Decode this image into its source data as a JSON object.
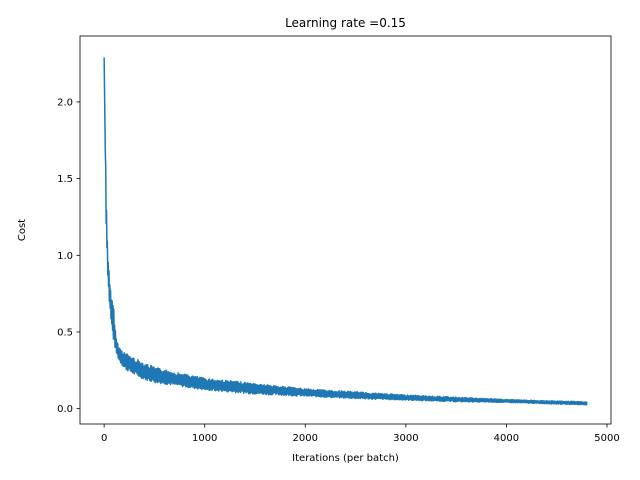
{
  "chart_data": {
    "type": "line",
    "title": "Learning rate =0.15",
    "xlabel": "Iterations (per batch)",
    "ylabel": "Cost",
    "xlim": [
      -240,
      5040
    ],
    "ylim": [
      -0.1,
      2.43
    ],
    "xticks": [
      0,
      1000,
      2000,
      3000,
      4000,
      5000
    ],
    "yticks": [
      0.0,
      0.5,
      1.0,
      1.5,
      2.0
    ],
    "xtick_labels": [
      "0",
      "1000",
      "2000",
      "3000",
      "4000",
      "5000"
    ],
    "ytick_labels": [
      "0.0",
      "0.5",
      "1.0",
      "1.5",
      "2.0"
    ],
    "grid": false,
    "legend": "none",
    "color": "#1f77b4",
    "series": [
      {
        "description": "noisy decreasing cost curve",
        "x": [
          0,
          10,
          20,
          35,
          50,
          70,
          90,
          120,
          150,
          200,
          300,
          400,
          500,
          700,
          1000,
          1500,
          2000,
          2500,
          3000,
          3500,
          4000,
          4500,
          4800
        ],
        "y_lower": [
          2.29,
          1.75,
          1.2,
          0.88,
          0.7,
          0.55,
          0.45,
          0.36,
          0.31,
          0.26,
          0.22,
          0.19,
          0.17,
          0.15,
          0.12,
          0.095,
          0.08,
          0.065,
          0.055,
          0.045,
          0.04,
          0.03,
          0.025
        ],
        "y_upper": [
          2.29,
          1.9,
          1.4,
          1.04,
          0.9,
          0.72,
          0.7,
          0.46,
          0.4,
          0.37,
          0.33,
          0.3,
          0.27,
          0.24,
          0.2,
          0.165,
          0.13,
          0.11,
          0.09,
          0.075,
          0.06,
          0.05,
          0.045
        ]
      }
    ]
  }
}
